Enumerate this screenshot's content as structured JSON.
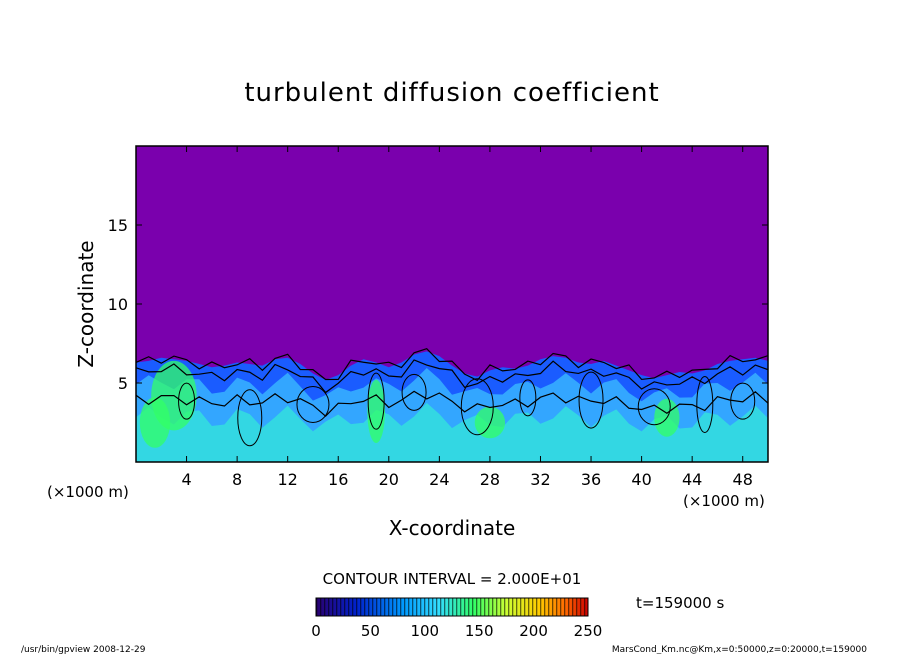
{
  "chart_data": {
    "type": "heatmap",
    "title": "turbulent diffusion coefficient",
    "xlabel": "X-coordinate",
    "ylabel": "Z-coordinate",
    "x_unit": "(×1000 m)",
    "x_unit_right": "(×1000 m)",
    "xlim": [
      0,
      50
    ],
    "ylim": [
      0,
      20
    ],
    "x_ticks": [
      4,
      8,
      12,
      16,
      20,
      24,
      28,
      32,
      36,
      40,
      44,
      48
    ],
    "y_ticks": [
      5,
      10,
      15
    ],
    "contour_interval_text": "CONTOUR INTERVAL = 2.000E+01",
    "colorbar": {
      "min": 0,
      "max": 250,
      "ticks": [
        0,
        50,
        100,
        150,
        200,
        250
      ]
    },
    "time_label": "t=159000 s",
    "boundary_layer_top_km": [
      [
        0,
        6.3
      ],
      [
        1,
        6.4
      ],
      [
        2,
        6.6
      ],
      [
        3,
        6.5
      ],
      [
        4,
        6.4
      ],
      [
        5,
        6.2
      ],
      [
        6,
        6.0
      ],
      [
        7,
        6.1
      ],
      [
        8,
        6.3
      ],
      [
        9,
        6.2
      ],
      [
        10,
        6.1
      ],
      [
        11,
        6.5
      ],
      [
        12,
        6.6
      ],
      [
        13,
        6.2
      ],
      [
        14,
        5.6
      ],
      [
        15,
        5.2
      ],
      [
        16,
        5.5
      ],
      [
        17,
        6.1
      ],
      [
        18,
        6.5
      ],
      [
        19,
        6.3
      ],
      [
        20,
        6.0
      ],
      [
        21,
        6.3
      ],
      [
        22,
        6.8
      ],
      [
        23,
        7.0
      ],
      [
        24,
        6.7
      ],
      [
        25,
        6.1
      ],
      [
        26,
        5.6
      ],
      [
        27,
        5.4
      ],
      [
        28,
        5.8
      ],
      [
        29,
        6.0
      ],
      [
        30,
        5.9
      ],
      [
        31,
        6.1
      ],
      [
        32,
        6.5
      ],
      [
        33,
        6.7
      ],
      [
        34,
        6.6
      ],
      [
        35,
        6.3
      ],
      [
        36,
        6.2
      ],
      [
        37,
        6.4
      ],
      [
        38,
        6.1
      ],
      [
        39,
        5.8
      ],
      [
        40,
        5.5
      ],
      [
        41,
        5.3
      ],
      [
        42,
        5.5
      ],
      [
        43,
        5.7
      ],
      [
        44,
        5.6
      ],
      [
        45,
        5.8
      ],
      [
        46,
        6.2
      ],
      [
        47,
        6.4
      ],
      [
        48,
        6.5
      ],
      [
        49,
        6.6
      ],
      [
        50,
        6.4
      ]
    ],
    "grid": false
  },
  "footer": {
    "left": "/usr/bin/gpview   2008-12-29",
    "right": "MarsCond_Km.nc@Km,x=0:50000,z=0:20000,t=159000"
  },
  "colors": {
    "background_field": "#7a00ad",
    "low_layer": "#1a5cff",
    "mid_layer": "#33a6ff",
    "high_layer": "#33ffcc",
    "peak_layer": "#33ff66",
    "contour": "#000000"
  }
}
